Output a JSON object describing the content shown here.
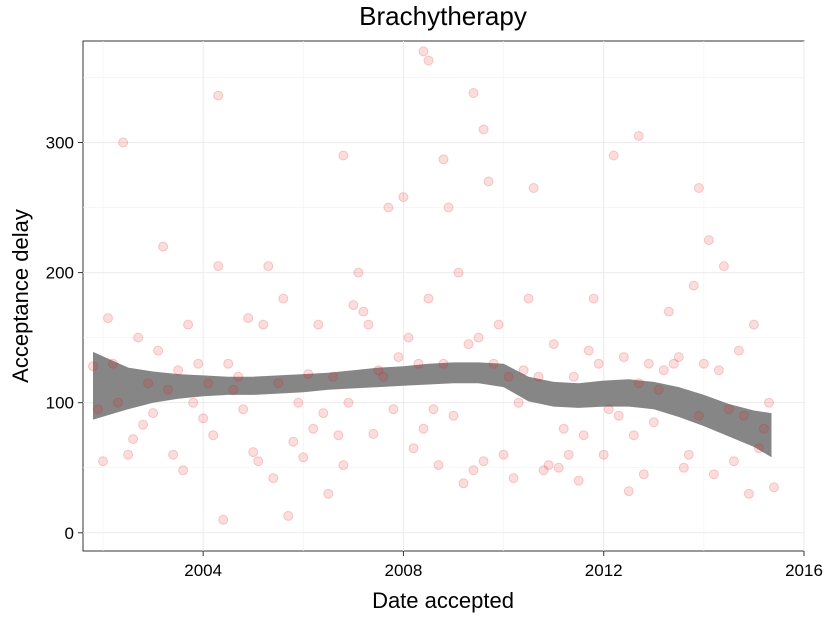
{
  "chart_data": {
    "type": "scatter",
    "title": "Brachytherapy",
    "xlabel": "Date accepted",
    "ylabel": "Acceptance delay",
    "xlim": [
      2001.6,
      2016.0
    ],
    "ylim": [
      -14,
      378
    ],
    "x_ticks": [
      2004,
      2008,
      2012,
      2016
    ],
    "y_ticks": [
      0,
      100,
      200,
      300
    ],
    "x_tick_labels": [
      "2004",
      "2008",
      "2012",
      "2016"
    ],
    "y_tick_labels": [
      "0",
      "100",
      "200",
      "300"
    ],
    "grid": true,
    "legend": "none",
    "colors": {
      "points": "#e41a1c",
      "band": "#808080",
      "axis": "#333333",
      "grid": "#ebebeb"
    },
    "series": [
      {
        "type": "points",
        "x": [
          2001.8,
          2001.9,
          2002.0,
          2002.1,
          2002.2,
          2002.3,
          2002.5,
          2002.6,
          2002.7,
          2002.8,
          2002.9,
          2003.0,
          2003.1,
          2003.2,
          2003.3,
          2003.4,
          2003.5,
          2003.6,
          2003.7,
          2003.8,
          2003.9,
          2004.0,
          2004.1,
          2004.2,
          2004.3,
          2004.4,
          2004.5,
          2004.6,
          2004.7,
          2004.8,
          2004.9,
          2005.0,
          2005.1,
          2005.2,
          2005.3,
          2005.4,
          2005.5,
          2005.6,
          2005.7,
          2005.8,
          2005.9,
          2006.0,
          2006.1,
          2006.2,
          2006.3,
          2006.4,
          2006.5,
          2006.6,
          2006.7,
          2006.8,
          2006.9,
          2007.0,
          2007.1,
          2007.2,
          2007.3,
          2007.4,
          2007.5,
          2007.6,
          2007.7,
          2007.8,
          2007.9,
          2008.0,
          2008.1,
          2008.2,
          2008.3,
          2008.4,
          2008.5,
          2008.6,
          2008.7,
          2008.8,
          2008.9,
          2009.0,
          2009.1,
          2009.2,
          2009.3,
          2009.4,
          2009.5,
          2009.6,
          2009.7,
          2009.8,
          2009.9,
          2010.0,
          2010.1,
          2010.2,
          2010.3,
          2010.4,
          2010.5,
          2010.6,
          2010.7,
          2010.8,
          2010.9,
          2011.0,
          2011.1,
          2011.2,
          2011.3,
          2011.4,
          2011.5,
          2011.6,
          2011.7,
          2011.8,
          2011.9,
          2012.0,
          2012.1,
          2012.2,
          2012.3,
          2012.4,
          2012.5,
          2012.6,
          2012.7,
          2012.8,
          2012.9,
          2013.0,
          2013.1,
          2013.2,
          2013.3,
          2013.4,
          2013.5,
          2013.6,
          2013.7,
          2013.8,
          2013.9,
          2014.0,
          2014.1,
          2014.2,
          2014.3,
          2014.4,
          2014.5,
          2014.6,
          2014.7,
          2014.8,
          2014.9,
          2015.0,
          2015.1,
          2015.2,
          2015.3,
          2015.4,
          2002.4,
          2004.3,
          2008.4,
          2008.5,
          2009.4,
          2009.6,
          2012.7,
          2013.9,
          2006.8,
          2008.8
        ],
        "y": [
          128,
          95,
          55,
          165,
          130,
          100,
          60,
          72,
          150,
          83,
          115,
          92,
          140,
          220,
          110,
          60,
          125,
          48,
          160,
          100,
          130,
          88,
          115,
          75,
          205,
          10,
          130,
          110,
          120,
          95,
          165,
          62,
          55,
          160,
          205,
          42,
          115,
          180,
          13,
          70,
          100,
          58,
          122,
          80,
          160,
          92,
          30,
          120,
          75,
          52,
          100,
          175,
          200,
          170,
          160,
          76,
          125,
          120,
          250,
          95,
          135,
          258,
          150,
          65,
          130,
          80,
          180,
          95,
          52,
          130,
          250,
          90,
          200,
          38,
          145,
          48,
          150,
          55,
          270,
          130,
          160,
          60,
          120,
          42,
          100,
          125,
          180,
          265,
          120,
          48,
          52,
          145,
          50,
          80,
          60,
          120,
          40,
          75,
          140,
          180,
          130,
          60,
          95,
          290,
          90,
          135,
          32,
          75,
          115,
          45,
          130,
          85,
          110,
          125,
          170,
          130,
          135,
          50,
          60,
          190,
          90,
          130,
          225,
          45,
          125,
          205,
          95,
          55,
          140,
          90,
          30,
          160,
          65,
          80,
          100,
          35,
          300,
          336,
          370,
          363,
          338,
          310,
          305,
          265,
          290,
          287
        ],
        "opacity": 0.15,
        "radius": 4.5
      },
      {
        "type": "smooth_band",
        "x": [
          2001.8,
          2002.5,
          2003.0,
          2003.5,
          2004.0,
          2004.5,
          2005.0,
          2005.5,
          2006.0,
          2006.5,
          2007.0,
          2007.5,
          2008.0,
          2008.5,
          2009.0,
          2009.5,
          2010.0,
          2010.5,
          2011.0,
          2011.5,
          2012.0,
          2012.5,
          2013.0,
          2013.5,
          2014.0,
          2014.5,
          2015.0,
          2015.35
        ],
        "upper": [
          139,
          127,
          124,
          122,
          121,
          120,
          120,
          121,
          122,
          123,
          125,
          127,
          128,
          130,
          131,
          131,
          130,
          120,
          116,
          115,
          117,
          118,
          116,
          112,
          106,
          99,
          94,
          92
        ],
        "lower": [
          87,
          95,
          100,
          103,
          105,
          106,
          106,
          107,
          108,
          110,
          111,
          112,
          113,
          114,
          115,
          115,
          112,
          101,
          97,
          96,
          97,
          97,
          95,
          89,
          82,
          74,
          66,
          58
        ]
      }
    ]
  }
}
